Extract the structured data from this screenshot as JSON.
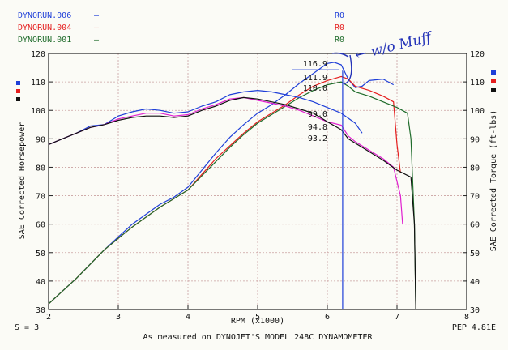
{
  "colors": {
    "run006": "#1f3fd8",
    "run004": "#e51f1f",
    "run001": "#1e6b2a",
    "magenta": "#e020d0",
    "black": "#111111",
    "grid": "#c9a0a0",
    "ink": "#2433b8"
  },
  "legend": [
    {
      "name": "DYNORUN.006",
      "mark": "—",
      "code": "R0",
      "color_key": "run006"
    },
    {
      "name": "DYNORUN.004",
      "mark": "—",
      "code": "R0",
      "color_key": "run004"
    },
    {
      "name": "DYNORUN.001",
      "mark": "—",
      "code": "R0",
      "color_key": "run001"
    }
  ],
  "annotation": "← w/o Muff",
  "footer": {
    "smoothing": "S = 3",
    "caption": "As measured on DYNOJET'S MODEL 248C DYNAMOMETER",
    "code": "PEP 4.81E"
  },
  "chart_data": {
    "type": "line",
    "xlabel": "RPM (x1000)",
    "ylabel_left": "SAE Corrected Horsepower",
    "ylabel_right": "SAE Corrected Torque (ft-lbs)",
    "xlim": [
      2,
      8
    ],
    "ylim": [
      30,
      120
    ],
    "xticks": [
      "2",
      "3",
      "4",
      "5",
      "6",
      "7",
      "8"
    ],
    "yticks": [
      "30",
      "40",
      "50",
      "60",
      "70",
      "80",
      "90",
      "100",
      "110",
      "120"
    ],
    "grid": true,
    "cursor_rpm": 6.22,
    "peak_labels": {
      "horsepower": [
        {
          "text": "116.9",
          "color_key": "run006"
        },
        {
          "text": "111.9",
          "color_key": "run004"
        },
        {
          "text": "110.0",
          "color_key": "black"
        }
      ],
      "torque": [
        {
          "text": "99.0",
          "color_key": "run006"
        },
        {
          "text": "94.8",
          "color_key": "magenta"
        },
        {
          "text": "93.2",
          "color_key": "black"
        }
      ]
    },
    "series": [
      {
        "name": "DYNORUN.006",
        "kind": "horsepower",
        "color_key": "run006",
        "x": [
          2.0,
          2.2,
          2.4,
          2.6,
          2.8,
          3.0,
          3.2,
          3.4,
          3.6,
          3.8,
          4.0,
          4.2,
          4.4,
          4.6,
          4.8,
          5.0,
          5.2,
          5.4,
          5.6,
          5.8,
          6.0,
          6.1,
          6.2,
          6.3,
          6.4,
          6.5,
          6.6,
          6.8,
          6.95
        ],
        "y": [
          32,
          36.5,
          41,
          46,
          51,
          55.5,
          60,
          63.5,
          67,
          69.5,
          73,
          79,
          85,
          90.5,
          95,
          99,
          102,
          105.5,
          109.5,
          113,
          116.5,
          116.9,
          116,
          111,
          108,
          108.5,
          110.5,
          111,
          109
        ]
      },
      {
        "name": "DYNORUN.004",
        "kind": "horsepower",
        "color_key": "run004",
        "x": [
          2.0,
          2.2,
          2.4,
          2.6,
          2.8,
          3.0,
          3.2,
          3.4,
          3.6,
          3.8,
          4.0,
          4.2,
          4.4,
          4.6,
          4.8,
          5.0,
          5.2,
          5.4,
          5.6,
          5.8,
          6.0,
          6.2,
          6.3,
          6.4,
          6.6,
          6.8,
          6.95,
          7.0,
          7.05
        ],
        "y": [
          32,
          36.5,
          41,
          46,
          51,
          55,
          59,
          62.5,
          66,
          69,
          72,
          77.5,
          83,
          87.5,
          92,
          96,
          99,
          102,
          105.5,
          108.5,
          110.5,
          111.9,
          111,
          108.5,
          107,
          105,
          103,
          88,
          78
        ]
      },
      {
        "name": "DYNORUN.001",
        "kind": "horsepower",
        "color_key": "run001",
        "x": [
          2.0,
          2.2,
          2.4,
          2.6,
          2.8,
          3.0,
          3.2,
          3.4,
          3.6,
          3.8,
          4.0,
          4.2,
          4.4,
          4.6,
          4.8,
          5.0,
          5.2,
          5.4,
          5.6,
          5.8,
          6.0,
          6.2,
          6.3,
          6.4,
          6.6,
          6.8,
          7.0,
          7.15,
          7.2,
          7.25,
          7.27
        ],
        "y": [
          32,
          36.5,
          41,
          46,
          51,
          55,
          59,
          62.5,
          66,
          69,
          72,
          77,
          82,
          87,
          91.5,
          95.5,
          98.5,
          101.5,
          104.5,
          107,
          109,
          110,
          108.5,
          106.5,
          105,
          103,
          101,
          99,
          90,
          60,
          30
        ]
      },
      {
        "name": "DYNORUN.006 torque",
        "kind": "torque",
        "color_key": "run006",
        "x": [
          2.0,
          2.2,
          2.4,
          2.6,
          2.8,
          3.0,
          3.2,
          3.4,
          3.6,
          3.8,
          4.0,
          4.2,
          4.4,
          4.6,
          4.8,
          5.0,
          5.2,
          5.4,
          5.6,
          5.8,
          6.0,
          6.2,
          6.4,
          6.5
        ],
        "y": [
          88,
          90,
          92,
          94.5,
          95,
          98,
          99.5,
          100.5,
          100,
          99,
          99.5,
          101.5,
          103,
          105.5,
          106.5,
          107,
          106.5,
          105.5,
          104.5,
          103,
          101,
          99,
          95.5,
          92
        ]
      },
      {
        "name": "DYNORUN.004 torque",
        "kind": "torque",
        "color_key": "magenta",
        "x": [
          2.0,
          2.2,
          2.4,
          2.6,
          2.8,
          3.0,
          3.2,
          3.4,
          3.6,
          3.8,
          4.0,
          4.2,
          4.4,
          4.6,
          4.8,
          5.0,
          5.2,
          5.4,
          5.6,
          5.8,
          6.0,
          6.2,
          6.3,
          6.4,
          6.6,
          6.8,
          6.95,
          7.05,
          7.08
        ],
        "y": [
          88,
          90,
          92,
          94,
          95,
          97,
          98,
          99,
          99,
          98,
          98.5,
          100.5,
          102,
          104,
          104.5,
          103.5,
          102.5,
          101.5,
          100,
          98,
          96,
          94.8,
          91,
          89,
          86,
          83,
          80,
          70,
          60
        ]
      },
      {
        "name": "DYNORUN.001 torque",
        "kind": "torque",
        "color_key": "black",
        "x": [
          2.0,
          2.2,
          2.4,
          2.6,
          2.8,
          3.0,
          3.2,
          3.4,
          3.6,
          3.8,
          4.0,
          4.2,
          4.4,
          4.6,
          4.8,
          5.0,
          5.2,
          5.4,
          5.6,
          5.8,
          6.0,
          6.2,
          6.3,
          6.4,
          6.6,
          6.8,
          7.0,
          7.2,
          7.25,
          7.27
        ],
        "y": [
          88,
          90,
          92,
          94,
          95,
          96.5,
          97.5,
          98,
          98,
          97.5,
          98,
          100,
          101.5,
          103.5,
          104.5,
          104,
          103,
          102,
          100.5,
          99,
          96,
          93.2,
          90,
          88.5,
          85.5,
          82.5,
          79,
          76.5,
          60,
          30
        ]
      }
    ]
  }
}
